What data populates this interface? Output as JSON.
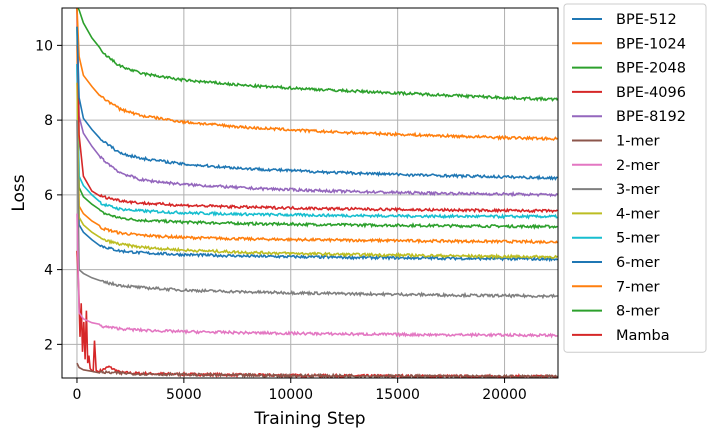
{
  "chart_data": {
    "type": "line",
    "xlabel": "Training Step",
    "ylabel": "Loss",
    "xlim": [
      -700,
      22500
    ],
    "ylim": [
      1.1,
      11
    ],
    "x_ticks": [
      0,
      5000,
      10000,
      15000,
      20000
    ],
    "y_ticks": [
      2,
      4,
      6,
      8,
      10
    ],
    "grid": true,
    "legend_placement": "outside-right",
    "series": [
      {
        "name": "BPE-512",
        "color": "#1f77b4",
        "x": [
          0,
          100,
          300,
          700,
          1200,
          2000,
          3000,
          5000,
          8000,
          12000,
          16000,
          20000,
          22500
        ],
        "y": [
          10.5,
          8.6,
          8.05,
          7.75,
          7.45,
          7.12,
          6.98,
          6.82,
          6.7,
          6.6,
          6.53,
          6.48,
          6.45
        ]
      },
      {
        "name": "BPE-1024",
        "color": "#ff7f0e",
        "x": [
          0,
          100,
          300,
          700,
          1200,
          2000,
          3000,
          5000,
          8000,
          12000,
          16000,
          20000,
          22500
        ],
        "y": [
          11,
          9.7,
          9.2,
          8.9,
          8.6,
          8.3,
          8.12,
          7.95,
          7.8,
          7.68,
          7.6,
          7.53,
          7.5
        ]
      },
      {
        "name": "BPE-2048",
        "color": "#2ca02c",
        "x": [
          0,
          100,
          300,
          700,
          1200,
          2000,
          3000,
          5000,
          8000,
          12000,
          16000,
          20000,
          22500
        ],
        "y": [
          11,
          10.95,
          10.6,
          10.2,
          9.8,
          9.45,
          9.25,
          9.07,
          8.92,
          8.8,
          8.7,
          8.6,
          8.55
        ]
      },
      {
        "name": "BPE-4096",
        "color": "#d62728",
        "x": [
          0,
          100,
          300,
          700,
          1200,
          2000,
          3000,
          5000,
          8000,
          12000,
          16000,
          20000,
          22500
        ],
        "y": [
          11,
          7.6,
          6.5,
          6.1,
          5.95,
          5.85,
          5.78,
          5.72,
          5.67,
          5.63,
          5.6,
          5.58,
          5.57
        ]
      },
      {
        "name": "BPE-8192",
        "color": "#9467bd",
        "x": [
          0,
          100,
          300,
          700,
          1200,
          2000,
          3000,
          5000,
          8000,
          12000,
          16000,
          20000,
          22500
        ],
        "y": [
          11,
          8.1,
          7.65,
          7.3,
          6.95,
          6.6,
          6.4,
          6.28,
          6.18,
          6.1,
          6.05,
          6.02,
          6.0
        ]
      },
      {
        "name": "1-mer",
        "color": "#8c564b",
        "x": [
          0,
          100,
          300,
          700,
          1200,
          2000,
          3000,
          5000,
          8000,
          12000,
          16000,
          20000,
          22500
        ],
        "y": [
          1.5,
          1.38,
          1.32,
          1.28,
          1.25,
          1.23,
          1.21,
          1.19,
          1.17,
          1.16,
          1.15,
          1.14,
          1.14
        ]
      },
      {
        "name": "2-mer",
        "color": "#e377c2",
        "x": [
          0,
          100,
          300,
          700,
          1200,
          2000,
          3000,
          5000,
          8000,
          12000,
          16000,
          20000,
          22500
        ],
        "y": [
          5.5,
          2.85,
          2.68,
          2.58,
          2.48,
          2.42,
          2.38,
          2.34,
          2.31,
          2.28,
          2.26,
          2.25,
          2.24
        ]
      },
      {
        "name": "3-mer",
        "color": "#7f7f7f",
        "x": [
          0,
          100,
          300,
          700,
          1200,
          2000,
          3000,
          5000,
          8000,
          12000,
          16000,
          20000,
          22500
        ],
        "y": [
          8.0,
          4.0,
          3.9,
          3.78,
          3.67,
          3.58,
          3.52,
          3.45,
          3.4,
          3.36,
          3.33,
          3.3,
          3.29
        ]
      },
      {
        "name": "4-mer",
        "color": "#bcbd22",
        "x": [
          0,
          100,
          300,
          700,
          1200,
          2000,
          3000,
          5000,
          8000,
          12000,
          16000,
          20000,
          22500
        ],
        "y": [
          9.0,
          5.4,
          5.2,
          5.0,
          4.8,
          4.68,
          4.6,
          4.52,
          4.46,
          4.41,
          4.38,
          4.35,
          4.34
        ]
      },
      {
        "name": "5-mer",
        "color": "#17becf",
        "x": [
          0,
          100,
          300,
          700,
          1200,
          2000,
          3000,
          5000,
          8000,
          12000,
          16000,
          20000,
          22500
        ],
        "y": [
          9.5,
          6.5,
          6.25,
          6.0,
          5.75,
          5.62,
          5.57,
          5.52,
          5.48,
          5.45,
          5.43,
          5.42,
          5.42
        ]
      },
      {
        "name": "6-mer",
        "color": "#1f77b4",
        "x": [
          0,
          100,
          300,
          700,
          1200,
          2000,
          3000,
          5000,
          8000,
          12000,
          16000,
          20000,
          22500
        ],
        "y": [
          9.5,
          5.2,
          5.0,
          4.8,
          4.62,
          4.5,
          4.45,
          4.4,
          4.36,
          4.33,
          4.31,
          4.29,
          4.28
        ]
      },
      {
        "name": "7-mer",
        "color": "#ff7f0e",
        "x": [
          0,
          100,
          300,
          700,
          1200,
          2000,
          3000,
          5000,
          8000,
          12000,
          16000,
          20000,
          22500
        ],
        "y": [
          10.0,
          5.7,
          5.5,
          5.3,
          5.1,
          4.98,
          4.92,
          4.86,
          4.82,
          4.79,
          4.77,
          4.75,
          4.74
        ]
      },
      {
        "name": "8-mer",
        "color": "#2ca02c",
        "x": [
          0,
          100,
          300,
          700,
          1200,
          2000,
          3000,
          5000,
          8000,
          12000,
          16000,
          20000,
          22500
        ],
        "y": [
          10.5,
          6.2,
          5.95,
          5.75,
          5.52,
          5.38,
          5.32,
          5.27,
          5.23,
          5.2,
          5.18,
          5.16,
          5.15
        ]
      },
      {
        "name": "Mamba",
        "color": "#d62728",
        "x": [
          0,
          80,
          140,
          200,
          260,
          320,
          380,
          440,
          500,
          560,
          620,
          700,
          760,
          820,
          900,
          1000,
          1500,
          2000,
          3000,
          5000,
          8000,
          12000,
          16000,
          20000,
          22500
        ],
        "y": [
          4.5,
          3.5,
          2.2,
          3.1,
          1.8,
          2.6,
          1.6,
          2.9,
          1.5,
          1.7,
          1.35,
          1.3,
          1.28,
          2.1,
          1.3,
          1.27,
          1.4,
          1.25,
          1.22,
          1.2,
          1.18,
          1.16,
          1.15,
          1.14,
          1.14
        ]
      }
    ]
  }
}
